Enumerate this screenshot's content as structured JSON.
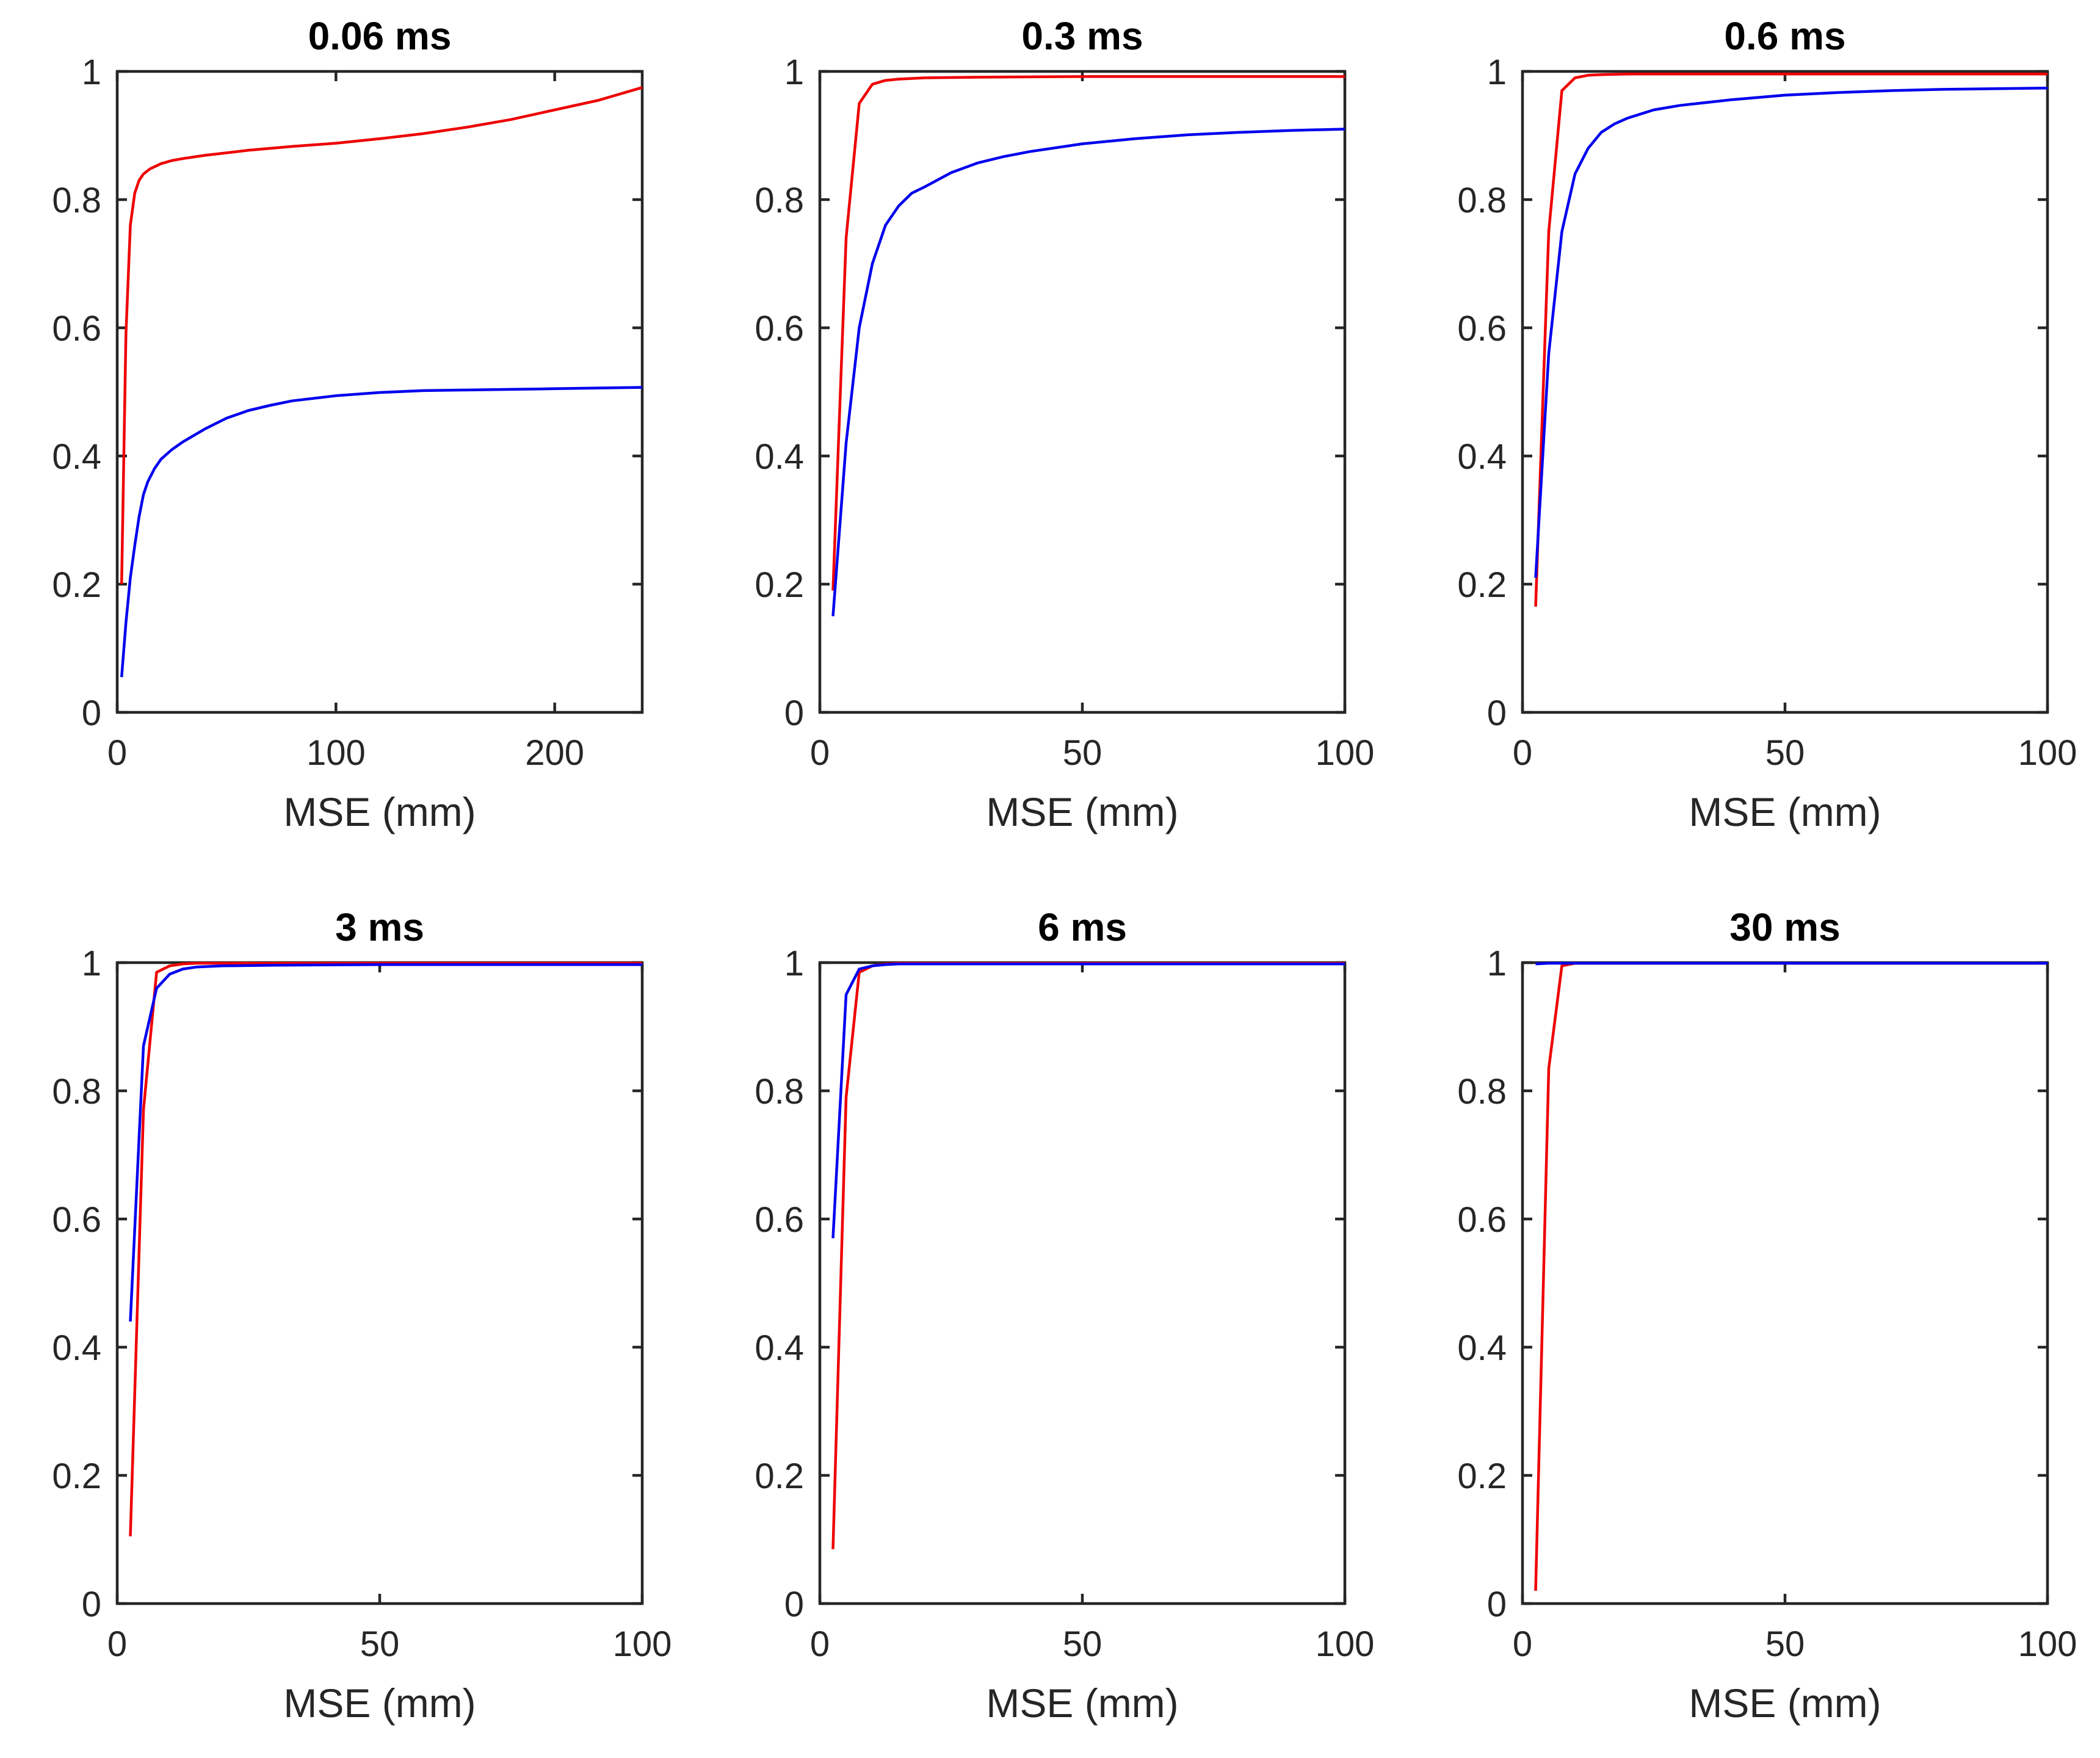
{
  "figure": {
    "colors": {
      "red": "#ee0000",
      "blue": "#0000ee",
      "axis": "#262626"
    }
  },
  "chart_data": [
    {
      "type": "line",
      "title": "0.06 ms",
      "xlabel": "MSE (mm)",
      "ylabel": "",
      "xlim": [
        0,
        240
      ],
      "ylim": [
        0,
        1
      ],
      "xticks": [
        0,
        100,
        200
      ],
      "xtick_labels": [
        "0",
        "100",
        "200"
      ],
      "yticks": [
        0,
        0.2,
        0.4,
        0.6,
        0.8,
        1
      ],
      "ytick_labels": [
        "0",
        "0.2",
        "0.4",
        "0.6",
        "0.8",
        "1"
      ],
      "series": [
        {
          "name": "red",
          "color": "#ee0000",
          "x": [
            2,
            4,
            6,
            8,
            10,
            12,
            15,
            20,
            25,
            30,
            40,
            50,
            60,
            80,
            100,
            120,
            140,
            160,
            180,
            200,
            220,
            240
          ],
          "y": [
            0.2,
            0.59,
            0.76,
            0.81,
            0.83,
            0.84,
            0.848,
            0.856,
            0.861,
            0.864,
            0.869,
            0.873,
            0.877,
            0.883,
            0.888,
            0.895,
            0.903,
            0.913,
            0.925,
            0.94,
            0.955,
            0.975
          ]
        },
        {
          "name": "blue",
          "color": "#0000ee",
          "x": [
            2,
            4,
            6,
            8,
            10,
            12,
            14,
            17,
            20,
            25,
            30,
            40,
            50,
            60,
            70,
            80,
            100,
            120,
            140,
            160,
            200,
            240
          ],
          "y": [
            0.055,
            0.14,
            0.21,
            0.26,
            0.305,
            0.34,
            0.36,
            0.38,
            0.395,
            0.41,
            0.422,
            0.442,
            0.459,
            0.471,
            0.479,
            0.486,
            0.494,
            0.499,
            0.502,
            0.503,
            0.505,
            0.507
          ]
        }
      ]
    },
    {
      "type": "line",
      "title": "0.3 ms",
      "xlabel": "MSE (mm)",
      "ylabel": "",
      "xlim": [
        0,
        100
      ],
      "ylim": [
        0,
        1
      ],
      "xticks": [
        0,
        50,
        100
      ],
      "xtick_labels": [
        "0",
        "50",
        "100"
      ],
      "yticks": [
        0,
        0.2,
        0.4,
        0.6,
        0.8,
        1
      ],
      "ytick_labels": [
        "0",
        "0.2",
        "0.4",
        "0.6",
        "0.8",
        "1"
      ],
      "series": [
        {
          "name": "red",
          "color": "#ee0000",
          "x": [
            2.5,
            5,
            7.5,
            10,
            12.5,
            15,
            20,
            30,
            50,
            75,
            100
          ],
          "y": [
            0.19,
            0.74,
            0.95,
            0.98,
            0.986,
            0.988,
            0.99,
            0.991,
            0.992,
            0.992,
            0.992
          ]
        },
        {
          "name": "blue",
          "color": "#0000ee",
          "x": [
            2.5,
            5,
            7.5,
            10,
            12.5,
            15,
            17.5,
            20,
            25,
            30,
            35,
            40,
            50,
            60,
            70,
            80,
            90,
            100
          ],
          "y": [
            0.15,
            0.42,
            0.6,
            0.7,
            0.76,
            0.79,
            0.81,
            0.82,
            0.842,
            0.857,
            0.867,
            0.875,
            0.887,
            0.895,
            0.901,
            0.905,
            0.908,
            0.91
          ]
        }
      ]
    },
    {
      "type": "line",
      "title": "0.6 ms",
      "xlabel": "MSE (mm)",
      "ylabel": "",
      "xlim": [
        0,
        100
      ],
      "ylim": [
        0,
        1
      ],
      "xticks": [
        0,
        50,
        100
      ],
      "xtick_labels": [
        "0",
        "50",
        "100"
      ],
      "yticks": [
        0,
        0.2,
        0.4,
        0.6,
        0.8,
        1
      ],
      "ytick_labels": [
        "0",
        "0.2",
        "0.4",
        "0.6",
        "0.8",
        "1"
      ],
      "series": [
        {
          "name": "red",
          "color": "#ee0000",
          "x": [
            2.5,
            5,
            7.5,
            10,
            12.5,
            15,
            20,
            30,
            50,
            100
          ],
          "y": [
            0.165,
            0.75,
            0.97,
            0.99,
            0.994,
            0.995,
            0.996,
            0.996,
            0.996,
            0.996
          ]
        },
        {
          "name": "blue",
          "color": "#0000ee",
          "x": [
            2.5,
            5,
            7.5,
            10,
            12.5,
            15,
            17.5,
            20,
            25,
            30,
            40,
            50,
            60,
            70,
            80,
            100
          ],
          "y": [
            0.21,
            0.56,
            0.75,
            0.84,
            0.88,
            0.905,
            0.918,
            0.927,
            0.94,
            0.947,
            0.956,
            0.963,
            0.967,
            0.97,
            0.972,
            0.974
          ]
        }
      ]
    },
    {
      "type": "line",
      "title": "3 ms",
      "xlabel": "MSE (mm)",
      "ylabel": "",
      "xlim": [
        0,
        100
      ],
      "ylim": [
        0,
        1
      ],
      "xticks": [
        0,
        50,
        100
      ],
      "xtick_labels": [
        "0",
        "50",
        "100"
      ],
      "yticks": [
        0,
        0.2,
        0.4,
        0.6,
        0.8,
        1
      ],
      "ytick_labels": [
        "0",
        "0.2",
        "0.4",
        "0.6",
        "0.8",
        "1"
      ],
      "series": [
        {
          "name": "red",
          "color": "#ee0000",
          "x": [
            2.5,
            5,
            7.5,
            10,
            12.5,
            15,
            20,
            50,
            100
          ],
          "y": [
            0.105,
            0.77,
            0.985,
            0.995,
            0.998,
            0.999,
            0.999,
            0.999,
            0.999
          ]
        },
        {
          "name": "blue",
          "color": "#0000ee",
          "x": [
            2.5,
            5,
            7.5,
            10,
            12.5,
            15,
            20,
            30,
            50,
            100
          ],
          "y": [
            0.44,
            0.87,
            0.96,
            0.982,
            0.99,
            0.993,
            0.995,
            0.996,
            0.997,
            0.997
          ]
        }
      ]
    },
    {
      "type": "line",
      "title": "6 ms",
      "xlabel": "MSE (mm)",
      "ylabel": "",
      "xlim": [
        0,
        100
      ],
      "ylim": [
        0,
        1
      ],
      "xticks": [
        0,
        50,
        100
      ],
      "xtick_labels": [
        "0",
        "50",
        "100"
      ],
      "yticks": [
        0,
        0.2,
        0.4,
        0.6,
        0.8,
        1
      ],
      "ytick_labels": [
        "0",
        "0.2",
        "0.4",
        "0.6",
        "0.8",
        "1"
      ],
      "series": [
        {
          "name": "red",
          "color": "#ee0000",
          "x": [
            2.5,
            5,
            7.5,
            10,
            12.5,
            15,
            20,
            50,
            100
          ],
          "y": [
            0.085,
            0.79,
            0.985,
            0.995,
            0.998,
            0.999,
            0.999,
            0.999,
            0.999
          ]
        },
        {
          "name": "blue",
          "color": "#0000ee",
          "x": [
            2.5,
            5,
            7.5,
            10,
            12.5,
            15,
            20,
            30,
            50,
            100
          ],
          "y": [
            0.57,
            0.95,
            0.99,
            0.995,
            0.997,
            0.998,
            0.998,
            0.998,
            0.998,
            0.998
          ]
        }
      ]
    },
    {
      "type": "line",
      "title": "30 ms",
      "xlabel": "MSE (mm)",
      "ylabel": "",
      "xlim": [
        0,
        100
      ],
      "ylim": [
        0,
        1
      ],
      "xticks": [
        0,
        50,
        100
      ],
      "xtick_labels": [
        "0",
        "50",
        "100"
      ],
      "yticks": [
        0,
        0.2,
        0.4,
        0.6,
        0.8,
        1
      ],
      "ytick_labels": [
        "0",
        "0.2",
        "0.4",
        "0.6",
        "0.8",
        "1"
      ],
      "series": [
        {
          "name": "red",
          "color": "#ee0000",
          "x": [
            2.5,
            5,
            7.5,
            10,
            20,
            50,
            100
          ],
          "y": [
            0.02,
            0.835,
            0.995,
            0.999,
            0.999,
            0.999,
            0.999
          ]
        },
        {
          "name": "blue",
          "color": "#0000ee",
          "x": [
            2.5,
            5,
            7.5,
            10,
            20,
            50,
            100
          ],
          "y": [
            0.998,
            0.999,
            0.999,
            0.999,
            0.999,
            0.999,
            0.999
          ]
        }
      ]
    }
  ]
}
